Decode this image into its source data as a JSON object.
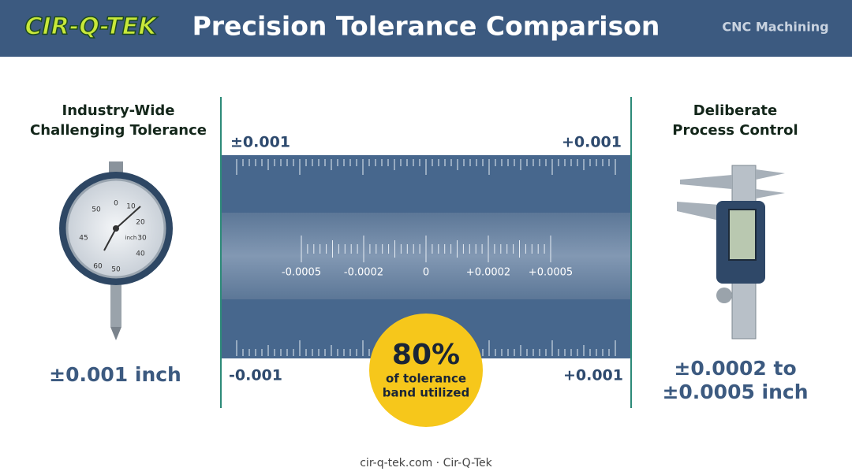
{
  "header": {
    "logo": "CIR-Q-TEK",
    "title": "Precision Tolerance Comparison",
    "tag": "CNC Machining"
  },
  "left": {
    "heading": [
      "Industry-Wide",
      "Challenging Tolerance"
    ],
    "value": "±0.001 inch",
    "dial": [
      "0",
      "10",
      "20",
      "30",
      "40",
      "50",
      "60",
      "45",
      "50"
    ],
    "dial_unit": "inch"
  },
  "right": {
    "heading": [
      "Deliberate",
      "Process Control"
    ],
    "value": [
      "±0.0002 to",
      "±0.0005 inch"
    ]
  },
  "ruler": {
    "top": [
      "±0.001",
      "+0.001"
    ],
    "bottom": [
      "-0.001",
      "+0.001"
    ],
    "inner": [
      "-0.0005",
      "-0.0002",
      "0",
      "+0.0002",
      "+0.0005"
    ]
  },
  "badge": {
    "value": "80%",
    "text": [
      "of tolerance",
      "band utilized"
    ]
  },
  "footer": "cir-q-tek.com · Cir-Q-Tek"
}
